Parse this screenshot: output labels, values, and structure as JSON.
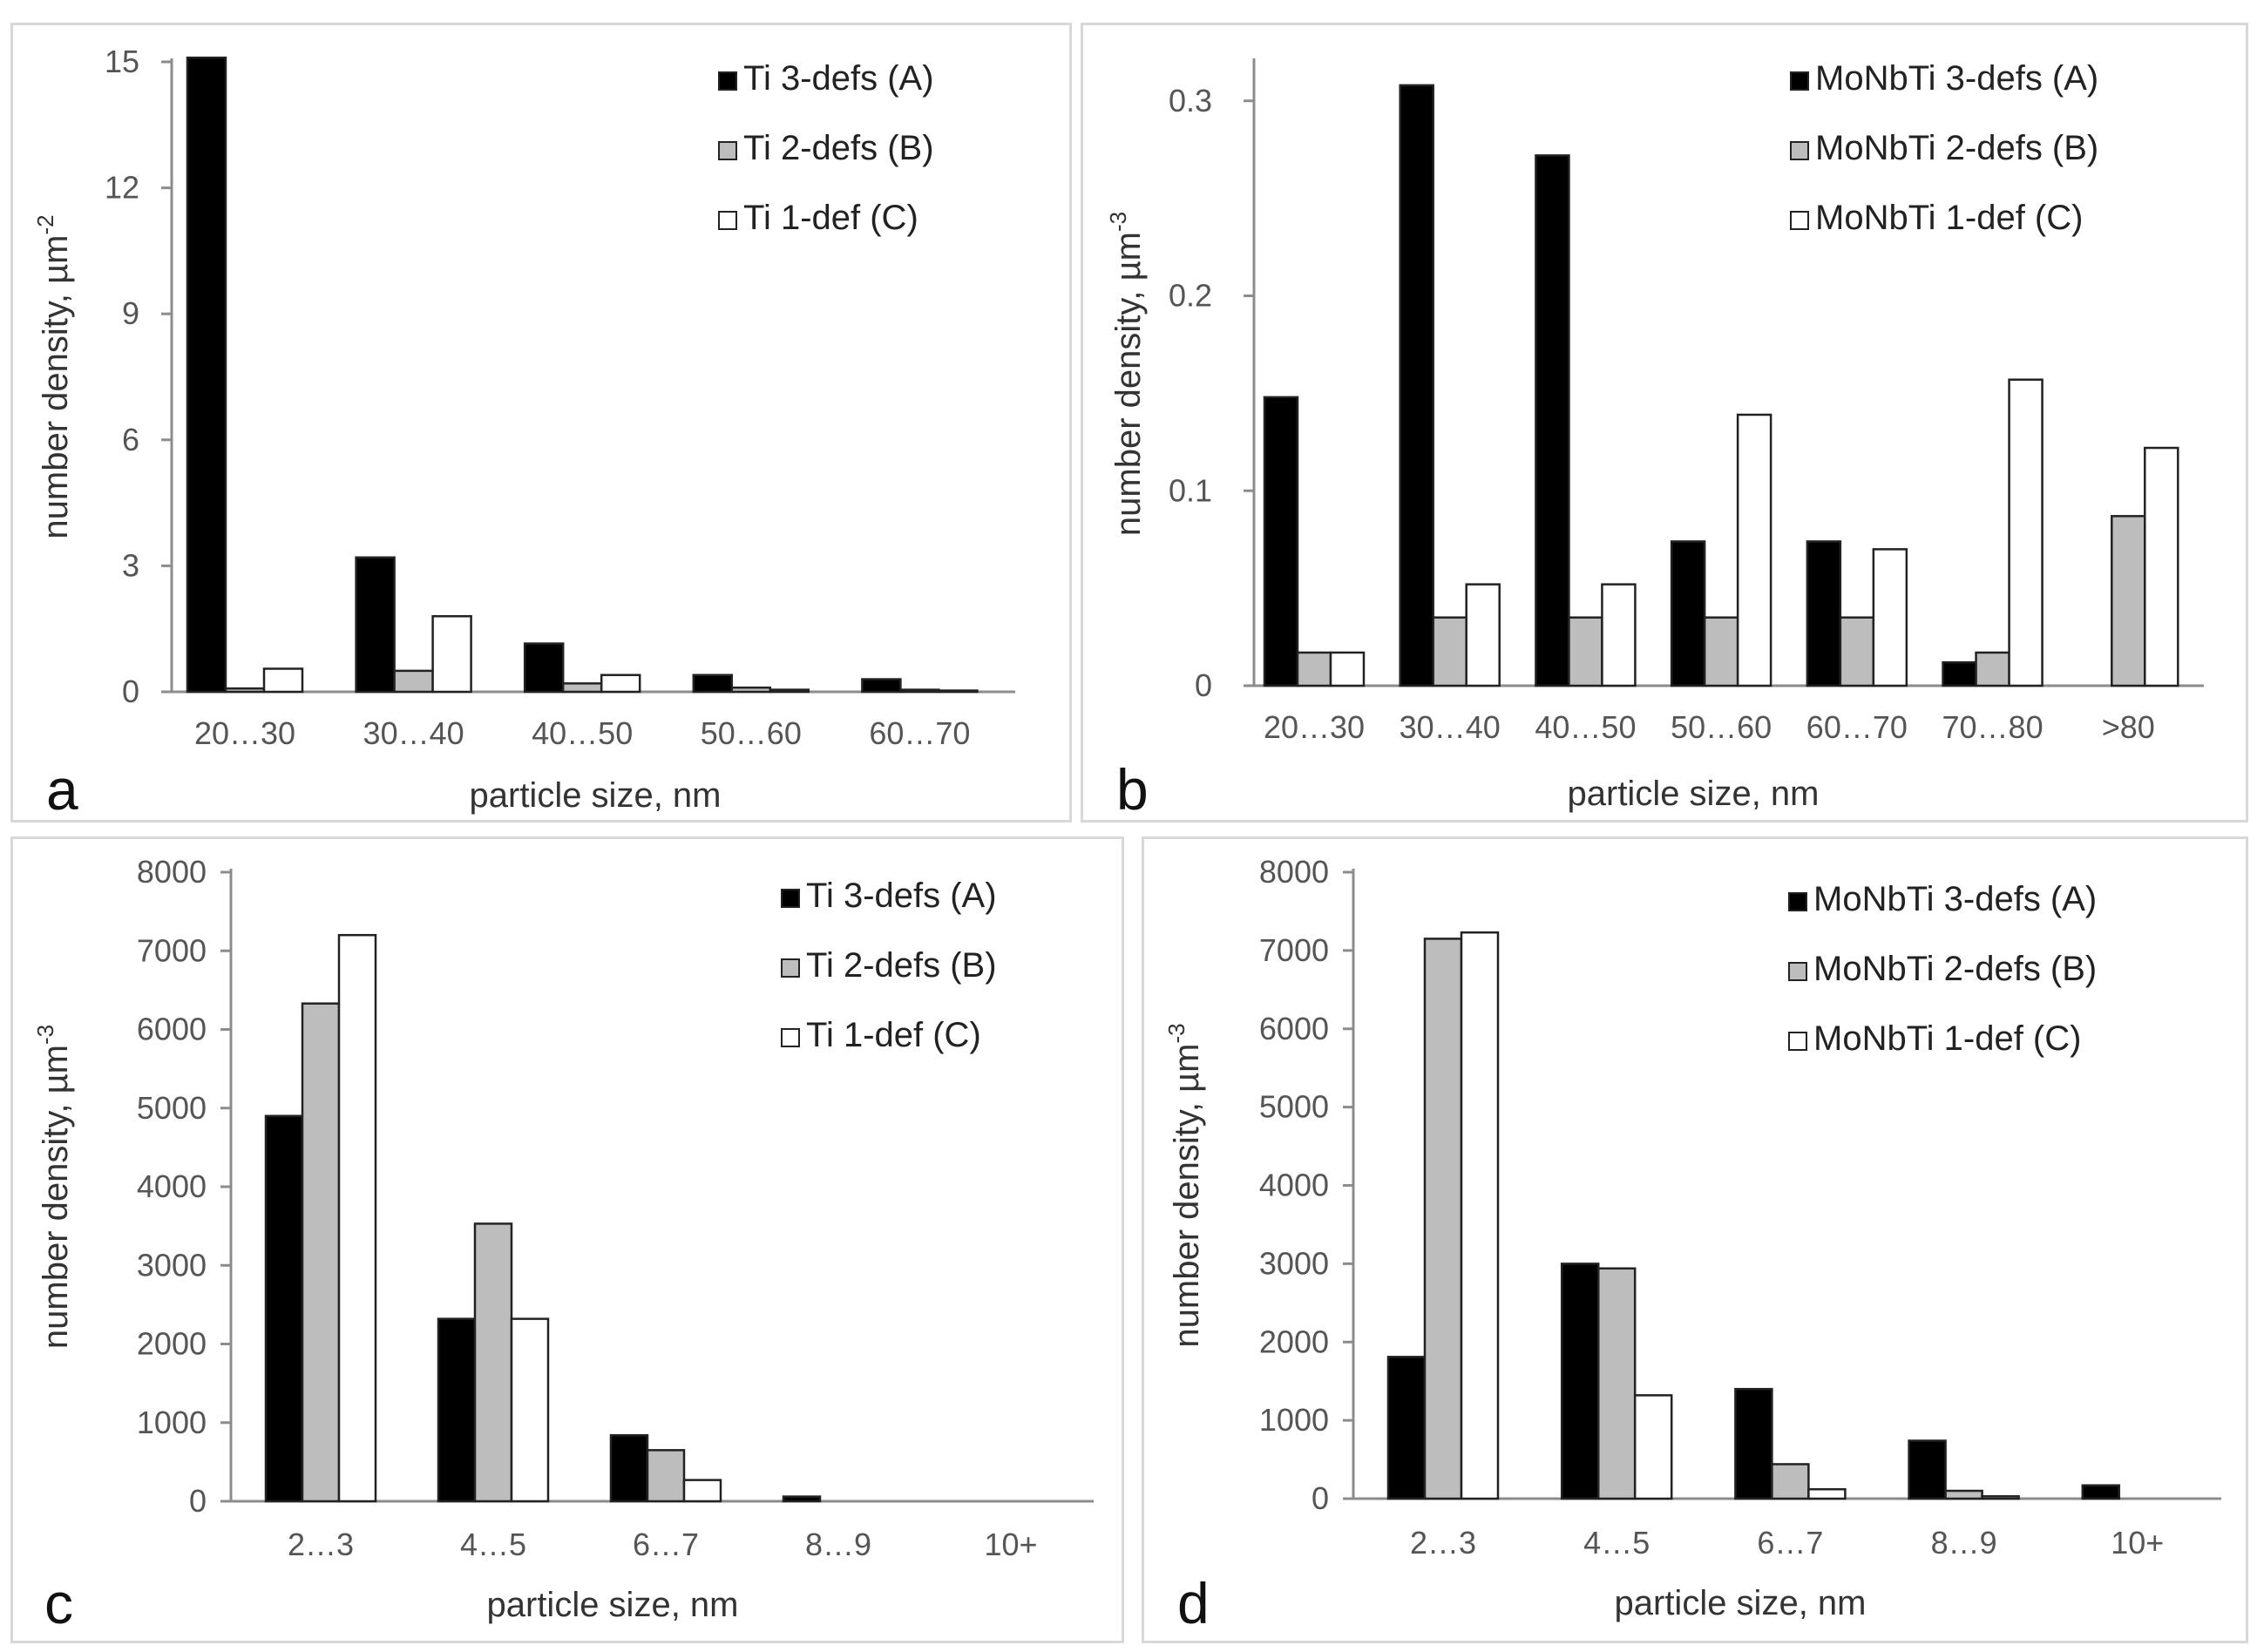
{
  "colors": {
    "series_a": "#000000",
    "series_b": "#bdbdbd",
    "series_c": "#ffffff",
    "axis": "#8c8c8c",
    "panel_border": "#d8d8d8"
  },
  "chart_data": [
    {
      "id": "a",
      "panel_label": "a",
      "type": "bar",
      "xlabel": "particle size, nm",
      "ylabel": "number density, µm",
      "ylabel_sup": "-2",
      "ylim": [
        0,
        15
      ],
      "yticks": [
        "0",
        "3",
        "6",
        "9",
        "12",
        "15"
      ],
      "categories": [
        "20…30",
        "30…40",
        "40…50",
        "50…60",
        "60…70"
      ],
      "legend_position": "top-right",
      "series": [
        {
          "name": "Ti 3-defs (A)",
          "values": [
            15.1,
            3.2,
            1.15,
            0.4,
            0.3
          ]
        },
        {
          "name": "Ti 2-defs (B)",
          "values": [
            0.08,
            0.5,
            0.2,
            0.1,
            0.05
          ]
        },
        {
          "name": "Ti 1-def (C)",
          "values": [
            0.55,
            1.8,
            0.4,
            0.05,
            0.03
          ]
        }
      ]
    },
    {
      "id": "b",
      "panel_label": "b",
      "type": "bar",
      "xlabel": "particle size, nm",
      "ylabel": "number density, µm",
      "ylabel_sup": "-3",
      "ylim": [
        0,
        0.32
      ],
      "yticks": [
        "0",
        "0.1",
        "0.2",
        "0.3"
      ],
      "categories": [
        "20…30",
        "30…40",
        "40…50",
        "50…60",
        "60…70",
        "70…80",
        ">80"
      ],
      "legend_position": "top-right",
      "series": [
        {
          "name": "MoNbTi 3-defs (A)",
          "values": [
            0.148,
            0.308,
            0.272,
            0.074,
            0.074,
            0.012,
            0
          ]
        },
        {
          "name": "MoNbTi 2-defs (B)",
          "values": [
            0.017,
            0.035,
            0.035,
            0.035,
            0.035,
            0.017,
            0.087
          ]
        },
        {
          "name": "MoNbTi 1-def (C)",
          "values": [
            0.017,
            0.052,
            0.052,
            0.139,
            0.07,
            0.157,
            0.122
          ]
        }
      ]
    },
    {
      "id": "c",
      "panel_label": "c",
      "type": "bar",
      "xlabel": "particle size, nm",
      "ylabel": "number density, µm",
      "ylabel_sup": "-3",
      "ylim": [
        0,
        8000
      ],
      "yticks": [
        "0",
        "1000",
        "2000",
        "3000",
        "4000",
        "5000",
        "6000",
        "7000",
        "8000"
      ],
      "categories": [
        "2…3",
        "4…5",
        "6…7",
        "8…9",
        "10+"
      ],
      "legend_position": "top-right",
      "series": [
        {
          "name": "Ti 3-defs (A)",
          "values": [
            4900,
            2320,
            840,
            60,
            0
          ]
        },
        {
          "name": "Ti 2-defs (B)",
          "values": [
            6330,
            3530,
            650,
            0,
            0
          ]
        },
        {
          "name": "Ti 1-def (C)",
          "values": [
            7200,
            2320,
            270,
            0,
            0
          ]
        }
      ]
    },
    {
      "id": "d",
      "panel_label": "d",
      "type": "bar",
      "xlabel": "particle size, nm",
      "ylabel": "number density, µm",
      "ylabel_sup": "-3",
      "ylim": [
        0,
        8000
      ],
      "yticks": [
        "0",
        "1000",
        "2000",
        "3000",
        "4000",
        "5000",
        "6000",
        "7000",
        "8000"
      ],
      "categories": [
        "2…3",
        "4…5",
        "6…7",
        "8…9",
        "10+"
      ],
      "legend_position": "top-right",
      "series": [
        {
          "name": "MoNbTi 3-defs (A)",
          "values": [
            1810,
            3000,
            1400,
            740,
            170
          ]
        },
        {
          "name": "MoNbTi 2-defs (B)",
          "values": [
            7150,
            2940,
            440,
            100,
            0
          ]
        },
        {
          "name": "MoNbTi 1-def (C)",
          "values": [
            7230,
            1320,
            120,
            30,
            0
          ]
        }
      ]
    }
  ]
}
